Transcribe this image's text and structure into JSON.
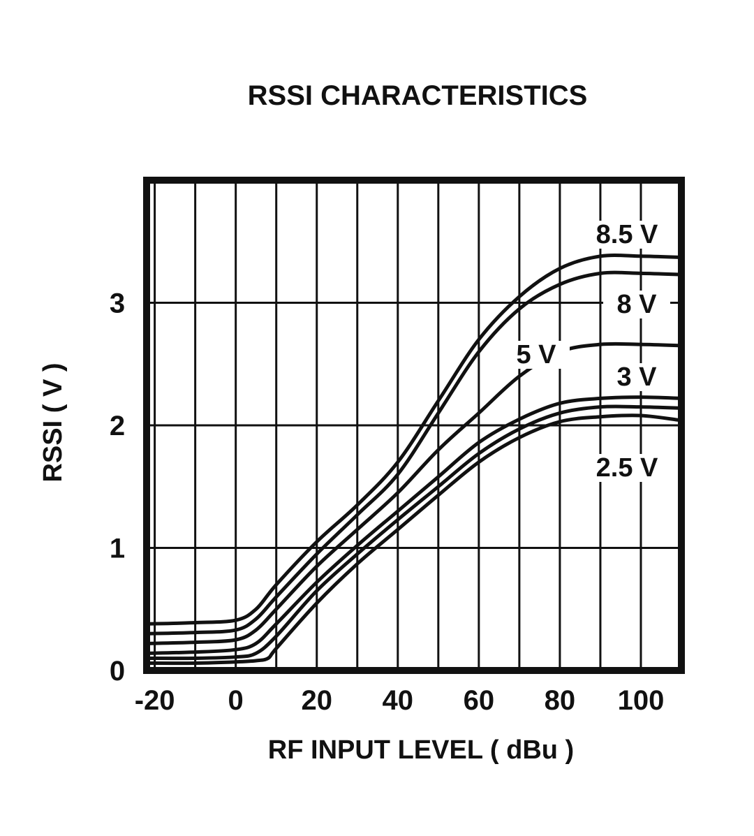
{
  "chart_data": {
    "type": "line",
    "title": "RSSI CHARACTERISTICS",
    "xlabel": "RF INPUT LEVEL ( dBu )",
    "ylabel": "RSSI ( V )",
    "xlim": [
      -22,
      110
    ],
    "ylim": [
      0,
      4.0
    ],
    "grid": true,
    "x_grid_step": 10,
    "y_grid_step": 1,
    "x_ticks": [
      -20,
      0,
      20,
      40,
      60,
      80,
      100
    ],
    "x_tick_labels": [
      "-20",
      "0",
      "20",
      "40",
      "60",
      "80",
      "100"
    ],
    "y_ticks": [
      0,
      1,
      2,
      3
    ],
    "y_tick_labels": [
      "0",
      "1",
      "2",
      "3"
    ],
    "series": [
      {
        "name": "8.5 V",
        "x": [
          -22,
          -10,
          0,
          5,
          10,
          20,
          30,
          40,
          50,
          60,
          70,
          80,
          90,
          100,
          110
        ],
        "y": [
          0.38,
          0.39,
          0.41,
          0.5,
          0.7,
          1.05,
          1.35,
          1.7,
          2.2,
          2.7,
          3.05,
          3.28,
          3.38,
          3.38,
          3.37
        ]
      },
      {
        "name": "8 V",
        "x": [
          -22,
          -10,
          0,
          5,
          10,
          20,
          30,
          40,
          50,
          60,
          70,
          80,
          90,
          100,
          110
        ],
        "y": [
          0.3,
          0.31,
          0.33,
          0.42,
          0.6,
          0.95,
          1.27,
          1.6,
          2.1,
          2.6,
          2.95,
          3.15,
          3.24,
          3.24,
          3.23
        ]
      },
      {
        "name": "5 V",
        "x": [
          -22,
          -10,
          0,
          5,
          10,
          20,
          30,
          40,
          50,
          60,
          70,
          80,
          90,
          100,
          110
        ],
        "y": [
          0.22,
          0.23,
          0.25,
          0.33,
          0.5,
          0.85,
          1.15,
          1.45,
          1.8,
          2.1,
          2.4,
          2.6,
          2.66,
          2.66,
          2.65
        ]
      },
      {
        "name": "3 V",
        "x": [
          -22,
          -10,
          0,
          5,
          10,
          20,
          30,
          40,
          50,
          60,
          70,
          80,
          90,
          100,
          110
        ],
        "y": [
          0.14,
          0.15,
          0.17,
          0.22,
          0.38,
          0.72,
          1.02,
          1.3,
          1.58,
          1.86,
          2.05,
          2.18,
          2.22,
          2.23,
          2.22
        ]
      },
      {
        "name": "",
        "x": [
          -22,
          -10,
          0,
          5,
          10,
          20,
          30,
          40,
          50,
          60,
          70,
          80,
          90,
          100,
          110
        ],
        "y": [
          0.1,
          0.1,
          0.11,
          0.14,
          0.28,
          0.65,
          0.95,
          1.23,
          1.5,
          1.77,
          1.97,
          2.1,
          2.15,
          2.15,
          2.14
        ]
      },
      {
        "name": "2.5 V",
        "x": [
          -22,
          -10,
          0,
          5,
          8,
          10,
          20,
          30,
          40,
          50,
          60,
          70,
          80,
          90,
          100,
          110
        ],
        "y": [
          0.06,
          0.06,
          0.07,
          0.08,
          0.1,
          0.18,
          0.55,
          0.87,
          1.15,
          1.43,
          1.7,
          1.9,
          2.03,
          2.07,
          2.08,
          2.04
        ]
      }
    ]
  }
}
